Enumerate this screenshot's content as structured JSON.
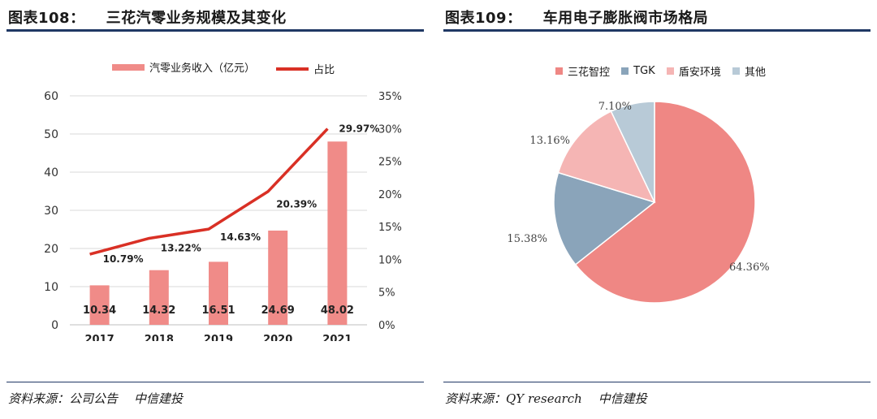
{
  "left": {
    "figure_label": "图表108：",
    "title": "三花汽零业务规模及其变化",
    "source_label": "资料来源：公司公告",
    "source_org": "中信建投"
  },
  "right": {
    "figure_label": "图表109：",
    "title": "车用电子膨胀阀市场格局",
    "source_label": "资料来源：QY research",
    "source_org": "中信建投"
  },
  "colors": {
    "bar": "#f08b88",
    "line": "#d93025",
    "pie": [
      "#ef8784",
      "#8aa4ba",
      "#f5b5b4",
      "#b8cad7"
    ],
    "rule": "#1f3864"
  },
  "chart_data": [
    {
      "type": "bar",
      "title": "三花汽零业务规模及其变化",
      "categories": [
        "2017",
        "2018",
        "2019",
        "2020",
        "2021"
      ],
      "series": [
        {
          "name": "汽零业务收入（亿元）",
          "type": "bar",
          "axis": "left",
          "values": [
            10.34,
            14.32,
            16.51,
            24.69,
            48.02
          ],
          "labels": [
            "10.34",
            "14.32",
            "16.51",
            "24.69",
            "48.02"
          ]
        },
        {
          "name": "占比",
          "type": "line",
          "axis": "right",
          "values": [
            10.79,
            13.22,
            14.63,
            20.39,
            29.97
          ],
          "labels": [
            "10.79%",
            "13.22%",
            "14.63%",
            "20.39%",
            "29.97%"
          ]
        }
      ],
      "y_left": {
        "min": 0,
        "max": 60,
        "ticks": [
          "0",
          "10",
          "20",
          "30",
          "40",
          "50",
          "60"
        ]
      },
      "y_right": {
        "min": 0,
        "max": 35,
        "ticks": [
          "0%",
          "5%",
          "10%",
          "15%",
          "20%",
          "25%",
          "30%",
          "35%"
        ]
      },
      "grid": true,
      "legend": "top"
    },
    {
      "type": "pie",
      "title": "车用电子膨胀阀市场格局",
      "labels": [
        "三花智控",
        "TGK",
        "盾安环境",
        "其他"
      ],
      "values": [
        64.36,
        15.38,
        13.16,
        7.1
      ],
      "value_labels": [
        "64.36%",
        "15.38%",
        "13.16%",
        "7.10%"
      ],
      "legend": "top"
    }
  ]
}
